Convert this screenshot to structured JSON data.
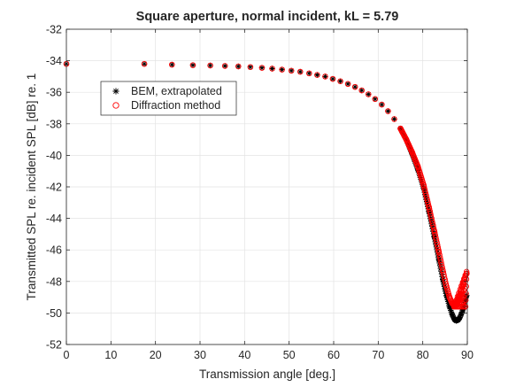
{
  "chart_data": {
    "type": "scatter",
    "title": "Square aperture, normal incident, kL = 5.79",
    "xlabel": "Transmission angle   [deg.]",
    "ylabel": "Transmitted SPL re. incident SPL  [dB] re. 1",
    "xlim": [
      0,
      90
    ],
    "ylim": [
      -52,
      -32
    ],
    "xticks": [
      "0",
      "10",
      "20",
      "30",
      "40",
      "50",
      "60",
      "70",
      "80",
      "90"
    ],
    "yticks": [
      "-32",
      "-34",
      "-36",
      "-38",
      "-40",
      "-42",
      "-44",
      "-46",
      "-48",
      "-50",
      "-52"
    ],
    "grid": true,
    "legend_position": "upper-left",
    "series": [
      {
        "name": "BEM, extrapolated",
        "marker": "asterisk",
        "color": "#000000",
        "x": [
          0,
          17.5,
          23.7,
          28.4,
          32.3,
          35.6,
          38.6,
          41.3,
          43.9,
          46.2,
          48.4,
          50.5,
          52.5,
          54.5,
          56.3,
          58.1,
          59.8,
          61.5,
          63.2,
          64.8,
          66.3,
          67.8,
          69.3,
          70.8,
          72.2,
          73.6,
          75.0,
          76.3,
          77.6,
          78.9,
          80.2,
          81.4,
          82.6,
          83.6,
          84.5,
          85.3,
          86.0,
          86.6,
          87.1,
          87.5,
          87.9,
          88.3,
          88.6,
          89.0,
          89.4,
          89.8
        ],
        "y": [
          -34.2,
          -34.2,
          -34.25,
          -34.28,
          -34.3,
          -34.33,
          -34.36,
          -34.4,
          -34.45,
          -34.5,
          -34.56,
          -34.63,
          -34.7,
          -34.8,
          -34.9,
          -35.0,
          -35.15,
          -35.3,
          -35.47,
          -35.66,
          -35.88,
          -36.13,
          -36.43,
          -36.78,
          -37.2,
          -37.7,
          -38.3,
          -39.0,
          -39.9,
          -40.9,
          -42.1,
          -43.6,
          -45.2,
          -46.6,
          -47.9,
          -48.9,
          -49.6,
          -50.1,
          -50.4,
          -50.5,
          -50.45,
          -50.3,
          -50.1,
          -49.8,
          -49.3,
          -48.9
        ]
      },
      {
        "name": "Diffraction method",
        "marker": "circle",
        "color": "#ff0000",
        "x": [
          0,
          17.5,
          23.7,
          28.4,
          32.3,
          35.6,
          38.6,
          41.3,
          43.9,
          46.2,
          48.4,
          50.5,
          52.5,
          54.5,
          56.3,
          58.1,
          59.8,
          61.5,
          63.2,
          64.8,
          66.3,
          67.8,
          69.3,
          70.8,
          72.2,
          73.6,
          75.0,
          76.3,
          77.6,
          78.9,
          80.2,
          81.4,
          82.6,
          83.6,
          84.5,
          85.3,
          86.0,
          86.6,
          87.1,
          87.5,
          87.9,
          88.3,
          88.6,
          89.0,
          89.4,
          89.8
        ],
        "y": [
          -34.2,
          -34.2,
          -34.25,
          -34.28,
          -34.3,
          -34.33,
          -34.36,
          -34.4,
          -34.45,
          -34.5,
          -34.56,
          -34.63,
          -34.7,
          -34.8,
          -34.9,
          -35.0,
          -35.15,
          -35.3,
          -35.47,
          -35.66,
          -35.88,
          -36.13,
          -36.43,
          -36.78,
          -37.2,
          -37.7,
          -38.3,
          -39.0,
          -39.8,
          -40.7,
          -41.9,
          -43.3,
          -44.8,
          -46.1,
          -47.3,
          -48.3,
          -49.0,
          -49.4,
          -49.5,
          -49.4,
          -49.2,
          -48.9,
          -48.6,
          -48.2,
          -47.8,
          -47.5
        ]
      }
    ]
  }
}
